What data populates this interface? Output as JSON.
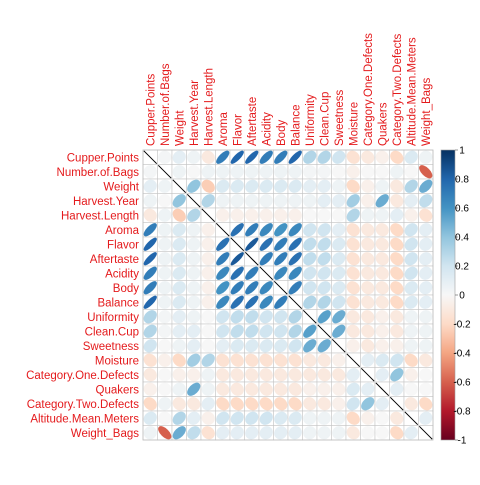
{
  "chart_data": {
    "type": "heatmap",
    "style": "corrplot-ellipse",
    "variables": [
      "Cupper.Points",
      "Number.of.Bags",
      "Weight",
      "Harvest.Year",
      "Harvest.Length",
      "Aroma",
      "Flavor",
      "Aftertaste",
      "Acidity",
      "Body",
      "Balance",
      "Uniformity",
      "Clean.Cup",
      "Sweetness",
      "Moisture",
      "Category.One.Defects",
      "Quakers",
      "Category.Two.Defects",
      "Altitude.Mean.Meters",
      "Weight_Bags"
    ],
    "matrix": [
      [
        1.0,
        0.02,
        0.1,
        0.05,
        -0.1,
        0.7,
        0.8,
        0.8,
        0.7,
        0.7,
        0.8,
        0.3,
        0.3,
        0.2,
        -0.15,
        -0.1,
        -0.05,
        -0.2,
        0.15,
        0.05
      ],
      [
        0.02,
        1.0,
        0.05,
        0.0,
        0.05,
        0.05,
        0.05,
        0.05,
        0.05,
        0.05,
        0.05,
        0.02,
        0.02,
        0.0,
        -0.05,
        0.0,
        0.0,
        0.05,
        0.0,
        -0.6
      ],
      [
        0.1,
        0.05,
        1.0,
        0.4,
        -0.25,
        0.15,
        0.15,
        0.15,
        0.15,
        0.15,
        0.15,
        0.1,
        0.1,
        0.05,
        -0.2,
        -0.05,
        0.05,
        -0.1,
        0.3,
        0.5
      ],
      [
        0.05,
        0.0,
        0.4,
        1.0,
        0.3,
        0.05,
        0.05,
        0.05,
        0.05,
        0.05,
        0.05,
        0.05,
        0.1,
        0.1,
        0.35,
        -0.05,
        0.5,
        -0.1,
        0.1,
        0.25
      ],
      [
        -0.1,
        0.05,
        -0.25,
        0.3,
        1.0,
        -0.05,
        -0.05,
        -0.05,
        -0.05,
        -0.05,
        -0.05,
        0.0,
        0.0,
        0.0,
        0.3,
        0.05,
        0.05,
        0.1,
        -0.05,
        -0.15
      ],
      [
        0.7,
        0.05,
        0.15,
        0.05,
        -0.05,
        1.0,
        0.75,
        0.7,
        0.65,
        0.6,
        0.65,
        0.2,
        0.2,
        0.1,
        -0.15,
        -0.1,
        -0.1,
        -0.2,
        0.2,
        0.1
      ],
      [
        0.8,
        0.05,
        0.15,
        0.05,
        -0.05,
        0.75,
        1.0,
        0.85,
        0.75,
        0.7,
        0.75,
        0.25,
        0.25,
        0.15,
        -0.15,
        -0.1,
        -0.1,
        -0.2,
        0.2,
        0.1
      ],
      [
        0.8,
        0.05,
        0.15,
        0.05,
        -0.05,
        0.7,
        0.85,
        1.0,
        0.7,
        0.7,
        0.75,
        0.25,
        0.25,
        0.15,
        -0.15,
        -0.1,
        -0.1,
        -0.2,
        0.2,
        0.1
      ],
      [
        0.7,
        0.05,
        0.15,
        0.05,
        -0.05,
        0.65,
        0.75,
        0.7,
        1.0,
        0.65,
        0.65,
        0.2,
        0.2,
        0.15,
        -0.15,
        -0.1,
        -0.1,
        -0.2,
        0.2,
        0.1
      ],
      [
        0.7,
        0.05,
        0.15,
        0.05,
        -0.05,
        0.6,
        0.7,
        0.7,
        0.65,
        1.0,
        0.7,
        0.2,
        0.2,
        0.15,
        -0.15,
        -0.1,
        -0.1,
        -0.2,
        0.15,
        0.1
      ],
      [
        0.8,
        0.05,
        0.15,
        0.05,
        -0.05,
        0.65,
        0.75,
        0.75,
        0.65,
        0.7,
        1.0,
        0.3,
        0.3,
        0.2,
        -0.15,
        -0.1,
        -0.1,
        -0.2,
        0.15,
        0.1
      ],
      [
        0.3,
        0.02,
        0.1,
        0.05,
        0.0,
        0.2,
        0.25,
        0.25,
        0.2,
        0.2,
        0.3,
        1.0,
        0.55,
        0.5,
        -0.1,
        -0.1,
        -0.05,
        -0.1,
        0.05,
        0.05
      ],
      [
        0.3,
        0.02,
        0.1,
        0.1,
        0.0,
        0.2,
        0.25,
        0.25,
        0.2,
        0.2,
        0.3,
        0.55,
        1.0,
        0.5,
        -0.1,
        -0.1,
        -0.05,
        -0.1,
        0.05,
        0.05
      ],
      [
        0.2,
        0.0,
        0.05,
        0.1,
        0.0,
        0.1,
        0.15,
        0.15,
        0.15,
        0.15,
        0.2,
        0.5,
        0.5,
        1.0,
        -0.05,
        -0.1,
        -0.05,
        -0.05,
        0.05,
        0.05
      ],
      [
        -0.15,
        -0.05,
        -0.2,
        0.35,
        0.3,
        -0.15,
        -0.15,
        -0.15,
        -0.15,
        -0.15,
        -0.15,
        -0.1,
        -0.1,
        -0.05,
        1.0,
        0.1,
        0.15,
        0.2,
        -0.2,
        -0.1
      ],
      [
        -0.1,
        0.0,
        -0.05,
        -0.05,
        0.05,
        -0.1,
        -0.1,
        -0.1,
        -0.1,
        -0.1,
        -0.1,
        -0.1,
        -0.1,
        -0.1,
        0.1,
        1.0,
        0.1,
        0.4,
        -0.05,
        0.0
      ],
      [
        -0.05,
        0.0,
        0.05,
        0.5,
        0.05,
        -0.1,
        -0.1,
        -0.1,
        -0.1,
        -0.1,
        -0.1,
        -0.05,
        -0.05,
        -0.05,
        0.15,
        0.1,
        1.0,
        0.1,
        0.0,
        0.0
      ],
      [
        -0.2,
        0.05,
        -0.1,
        -0.1,
        0.1,
        -0.2,
        -0.2,
        -0.2,
        -0.2,
        -0.2,
        -0.2,
        -0.1,
        -0.1,
        -0.05,
        0.2,
        0.4,
        0.1,
        1.0,
        -0.1,
        -0.2
      ],
      [
        0.15,
        0.0,
        0.3,
        0.1,
        -0.05,
        0.2,
        0.2,
        0.2,
        0.2,
        0.15,
        0.15,
        0.05,
        0.05,
        0.05,
        -0.2,
        -0.05,
        0.0,
        -0.1,
        1.0,
        0.1
      ],
      [
        0.05,
        -0.6,
        0.5,
        0.25,
        -0.15,
        0.1,
        0.1,
        0.1,
        0.1,
        0.1,
        0.1,
        0.05,
        0.05,
        0.05,
        -0.1,
        0.0,
        0.0,
        -0.2,
        0.1,
        1.0
      ]
    ],
    "colorbar": {
      "range": [
        -1,
        1
      ],
      "ticks": [
        "1",
        "0.8",
        "0.6",
        "0.4",
        "0.2",
        "0",
        "-0.2",
        "-0.4",
        "-0.6",
        "-0.8",
        "-1"
      ],
      "colors": {
        "negative": "#67001F",
        "neutral": "#F7F7F7",
        "positive": "#053061"
      },
      "placement": "right"
    },
    "label_color": "#E41A1C",
    "grid": true
  }
}
